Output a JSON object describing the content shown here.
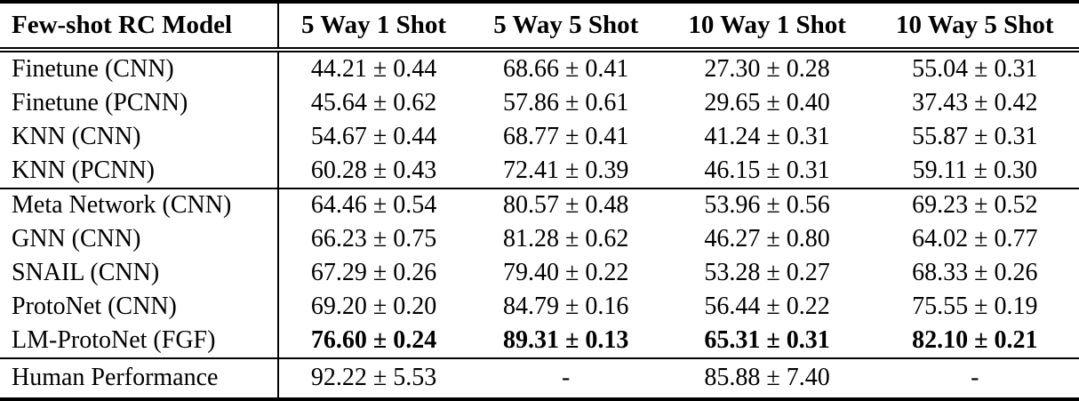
{
  "table": {
    "columns": [
      "Few-shot RC Model",
      "5 Way 1 Shot",
      "5 Way 5 Shot",
      "10 Way 1 Shot",
      "10 Way 5 Shot"
    ],
    "rows": [
      {
        "model": "Finetune (CNN)",
        "values": [
          "44.21 ± 0.44",
          "68.66 ± 0.41",
          "27.30 ± 0.28",
          "55.04 ± 0.31"
        ]
      },
      {
        "model": "Finetune (PCNN)",
        "values": [
          "45.64 ± 0.62",
          "57.86 ± 0.61",
          "29.65 ± 0.40",
          "37.43 ± 0.42"
        ]
      },
      {
        "model": "KNN (CNN)",
        "values": [
          "54.67 ± 0.44",
          "68.77 ± 0.41",
          "41.24 ± 0.31",
          "55.87 ± 0.31"
        ]
      },
      {
        "model": "KNN (PCNN)",
        "values": [
          "60.28 ± 0.43",
          "72.41 ± 0.39",
          "46.15 ± 0.31",
          "59.11 ± 0.30"
        ]
      },
      {
        "model": "Meta Network (CNN)",
        "values": [
          "64.46 ± 0.54",
          "80.57 ± 0.48",
          "53.96 ± 0.56",
          "69.23 ± 0.52"
        ]
      },
      {
        "model": "GNN (CNN)",
        "values": [
          "66.23 ± 0.75",
          "81.28 ± 0.62",
          "46.27 ± 0.80",
          "64.02 ± 0.77"
        ]
      },
      {
        "model": "SNAIL (CNN)",
        "values": [
          "67.29 ± 0.26",
          "79.40 ± 0.22",
          "53.28 ± 0.27",
          "68.33 ± 0.26"
        ]
      },
      {
        "model": "ProtoNet (CNN)",
        "values": [
          "69.20 ± 0.20",
          "84.79 ± 0.16",
          "56.44 ± 0.22",
          "75.55 ± 0.19"
        ]
      },
      {
        "model": "LM-ProtoNet (FGF)",
        "values": [
          "76.60 ± 0.24",
          "89.31 ± 0.13",
          "65.31 ± 0.31",
          "82.10 ± 0.21"
        ]
      },
      {
        "model": "Human Performance",
        "values": [
          "92.22 ± 5.53",
          "-",
          "85.88 ± 7.40",
          "-"
        ]
      }
    ],
    "colors": {
      "text": "#000000",
      "background": "#ffffff",
      "rule": "#000000"
    }
  }
}
